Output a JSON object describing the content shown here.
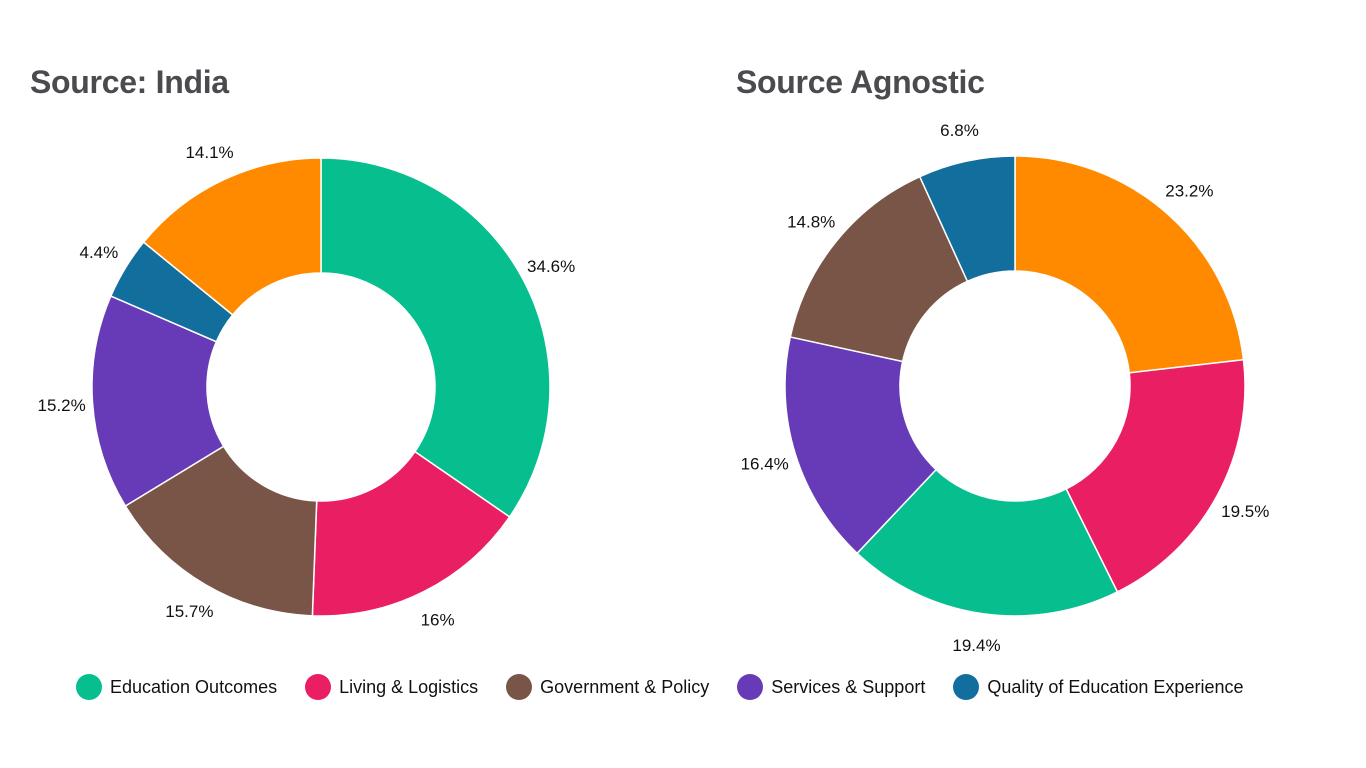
{
  "chart_data": [
    {
      "type": "pie",
      "title": "Source: India",
      "categories": [
        "Education Outcomes",
        "Living & Logistics",
        "Government & Policy",
        "Services & Support",
        "Quality of Education Experience"
      ],
      "values": [
        34.6,
        16,
        15.7,
        15.2,
        4.4
      ],
      "labels": [
        "34.6%",
        "16%",
        "15.7%",
        "15.2%",
        "4.4%"
      ],
      "colors": [
        "#07BF8E",
        "#E91E63",
        "#795548",
        "#673AB7",
        "#126E9D"
      ],
      "extra_slices": [
        {
          "category": "",
          "value": 14.1,
          "label": "14.1%",
          "color": "#FF8A00"
        }
      ]
    },
    {
      "type": "pie",
      "title": "Source Agnostic",
      "categories": [
        "",
        "Living & Logistics",
        "Education Outcomes",
        "Services & Support",
        "Government & Policy",
        "Quality of Education Experience"
      ],
      "values": [
        23.2,
        19.5,
        19.4,
        16.4,
        14.8,
        6.8
      ],
      "labels": [
        "23.2%",
        "19.5%",
        "19.4%",
        "16.4%",
        "14.8%",
        "6.8%"
      ],
      "colors": [
        "#FF8A00",
        "#E91E63",
        "#07BF8E",
        "#673AB7",
        "#795548",
        "#126E9D"
      ]
    }
  ],
  "legend": [
    {
      "label": "Education Outcomes",
      "color": "#07BF8E"
    },
    {
      "label": "Living & Logistics",
      "color": "#E91E63"
    },
    {
      "label": "Government & Policy",
      "color": "#795548"
    },
    {
      "label": "Services & Support",
      "color": "#673AB7"
    },
    {
      "label": "Quality of Education Experience",
      "color": "#126E9D"
    }
  ]
}
